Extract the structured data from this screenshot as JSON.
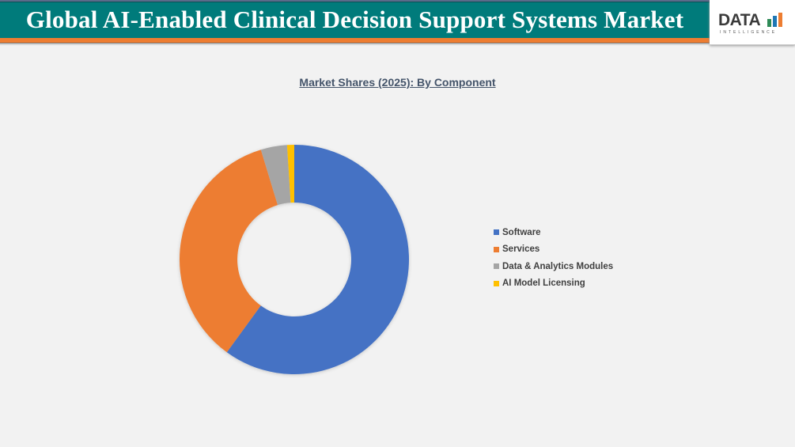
{
  "header": {
    "title": "Global AI-Enabled Clinical Decision Support Systems Market"
  },
  "logo": {
    "text": "DATA",
    "subtext": "INTELLIGENCE"
  },
  "chart_data": {
    "type": "pie",
    "donut": true,
    "title": "Market Shares (2025): By Component",
    "categories": [
      "Software",
      "Services",
      "Data & Analytics Modules",
      "AI Model Licensing"
    ],
    "values": [
      60.0,
      35.3,
      3.7,
      1.0
    ],
    "unit": "%",
    "colors": [
      "#4472c4",
      "#ed7d31",
      "#a5a5a5",
      "#ffc000"
    ],
    "legend": "right"
  }
}
